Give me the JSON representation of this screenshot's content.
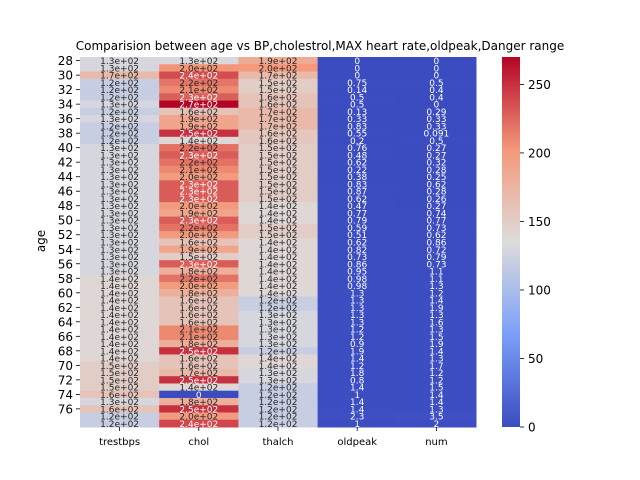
{
  "chart_data": {
    "type": "heatmap",
    "title": "Comparision between age vs BP,cholestrol,MAX heart rate,oldpeak,Danger range",
    "ylabel": "age",
    "xlabel": "",
    "columns": [
      "trestbps",
      "chol",
      "thalch",
      "oldpeak",
      "num"
    ],
    "y_tick_labels": [
      "28",
      "30",
      "32",
      "34",
      "36",
      "38",
      "40",
      "42",
      "44",
      "46",
      "48",
      "50",
      "52",
      "54",
      "56",
      "58",
      "60",
      "62",
      "64",
      "66",
      "68",
      "70",
      "72",
      "74",
      "76"
    ],
    "colormap": "coolwarm",
    "colorbar": {
      "min": 0,
      "max": 270,
      "ticks": [
        0,
        50,
        100,
        150,
        200,
        250
      ]
    },
    "rows": [
      {
        "age": 28,
        "values": [
          130,
          132,
          185,
          0,
          0
        ]
      },
      {
        "age": 29,
        "values": [
          130,
          204,
          202,
          0,
          0
        ]
      },
      {
        "age": 30,
        "values": [
          170,
          237,
          170,
          0,
          0
        ]
      },
      {
        "age": 31,
        "values": [
          120,
          219,
          150,
          0.75,
          0.5
        ]
      },
      {
        "age": 32,
        "values": [
          118,
          210,
          150,
          0.14,
          0.4
        ]
      },
      {
        "age": 33,
        "values": [
          120,
          228,
          160,
          0.5,
          0.4
        ]
      },
      {
        "age": 34,
        "values": [
          130,
          270,
          160,
          0.5,
          0
        ]
      },
      {
        "age": 35,
        "values": [
          120,
          160,
          170,
          0.13,
          0.29
        ]
      },
      {
        "age": 36,
        "values": [
          130,
          190,
          170,
          0.33,
          0.33
        ]
      },
      {
        "age": 37,
        "values": [
          120,
          190,
          170,
          0.83,
          0.33
        ]
      },
      {
        "age": 38,
        "values": [
          120,
          250,
          155,
          0.55,
          0.091
        ]
      },
      {
        "age": 39,
        "values": [
          120,
          140,
          155,
          0.2,
          0.5
        ]
      },
      {
        "age": 40,
        "values": [
          130,
          220,
          150,
          0.76,
          0.27
        ]
      },
      {
        "age": 41,
        "values": [
          130,
          230,
          150,
          0.48,
          0.27
        ]
      },
      {
        "age": 42,
        "values": [
          130,
          220,
          150,
          0.62,
          0.32
        ]
      },
      {
        "age": 43,
        "values": [
          130,
          210,
          150,
          0.22,
          0.28
        ]
      },
      {
        "age": 44,
        "values": [
          130,
          200,
          150,
          0.38,
          0.25
        ]
      },
      {
        "age": 45,
        "values": [
          130,
          230,
          150,
          0.83,
          0.62
        ]
      },
      {
        "age": 46,
        "values": [
          130,
          230,
          150,
          0.87,
          0.28
        ]
      },
      {
        "age": 47,
        "values": [
          130,
          230,
          150,
          0.62,
          0.26
        ]
      },
      {
        "age": 48,
        "values": [
          130,
          200,
          140,
          0.47,
          0.27
        ]
      },
      {
        "age": 49,
        "values": [
          130,
          190,
          140,
          0.77,
          0.74
        ]
      },
      {
        "age": 50,
        "values": [
          130,
          230,
          140,
          0.79,
          0.77
        ]
      },
      {
        "age": 51,
        "values": [
          130,
          220,
          150,
          0.59,
          0.73
        ]
      },
      {
        "age": 52,
        "values": [
          130,
          200,
          150,
          0.51,
          0.62
        ]
      },
      {
        "age": 53,
        "values": [
          130,
          160,
          140,
          0.62,
          0.86
        ]
      },
      {
        "age": 54,
        "values": [
          130,
          190,
          140,
          0.82,
          0.72
        ]
      },
      {
        "age": 55,
        "values": [
          130,
          150,
          140,
          0.73,
          0.79
        ]
      },
      {
        "age": 56,
        "values": [
          130,
          230,
          140,
          0.86,
          0.73
        ]
      },
      {
        "age": 57,
        "values": [
          130,
          180,
          140,
          0.95,
          1.1
        ]
      },
      {
        "age": 58,
        "values": [
          140,
          220,
          140,
          0.98,
          1.1
        ]
      },
      {
        "age": 59,
        "values": [
          140,
          200,
          140,
          0.98,
          1.3
        ]
      },
      {
        "age": 60,
        "values": [
          140,
          180,
          140,
          1.3,
          1.2
        ]
      },
      {
        "age": 61,
        "values": [
          140,
          160,
          120,
          1.3,
          1.4
        ]
      },
      {
        "age": 62,
        "values": [
          140,
          160,
          120,
          1.3,
          1.9
        ]
      },
      {
        "age": 63,
        "values": [
          140,
          160,
          130,
          1.3,
          1.3
        ]
      },
      {
        "age": 64,
        "values": [
          140,
          160,
          130,
          1.3,
          1.6
        ]
      },
      {
        "age": 65,
        "values": [
          140,
          210,
          130,
          1.2,
          1.3
        ]
      },
      {
        "age": 66,
        "values": [
          140,
          210,
          130,
          1.2,
          1.5
        ]
      },
      {
        "age": 67,
        "values": [
          140,
          180,
          130,
          0.9,
          1.9
        ]
      },
      {
        "age": 68,
        "values": [
          140,
          250,
          120,
          1.9,
          1.4
        ]
      },
      {
        "age": 69,
        "values": [
          140,
          160,
          140,
          1.4,
          1.3
        ]
      },
      {
        "age": 70,
        "values": [
          150,
          160,
          140,
          1.2,
          1.7
        ]
      },
      {
        "age": 71,
        "values": [
          150,
          170,
          130,
          1.8,
          1.2
        ]
      },
      {
        "age": 72,
        "values": [
          150,
          250,
          130,
          0.8,
          1.2
        ]
      },
      {
        "age": 73,
        "values": [
          150,
          140,
          120,
          1.4,
          1.5
        ]
      },
      {
        "age": 74,
        "values": [
          160,
          0,
          120,
          1.0,
          1.4
        ]
      },
      {
        "age": 75,
        "values": [
          130,
          180,
          120,
          1.4,
          1.4
        ]
      },
      {
        "age": 76,
        "values": [
          160,
          250,
          120,
          1.4,
          1.3
        ]
      },
      {
        "age": 77,
        "values": [
          120,
          200,
          120,
          2.3,
          3.5
        ]
      },
      {
        "age": 78,
        "values": [
          120,
          240,
          120,
          1,
          2
        ]
      }
    ]
  }
}
